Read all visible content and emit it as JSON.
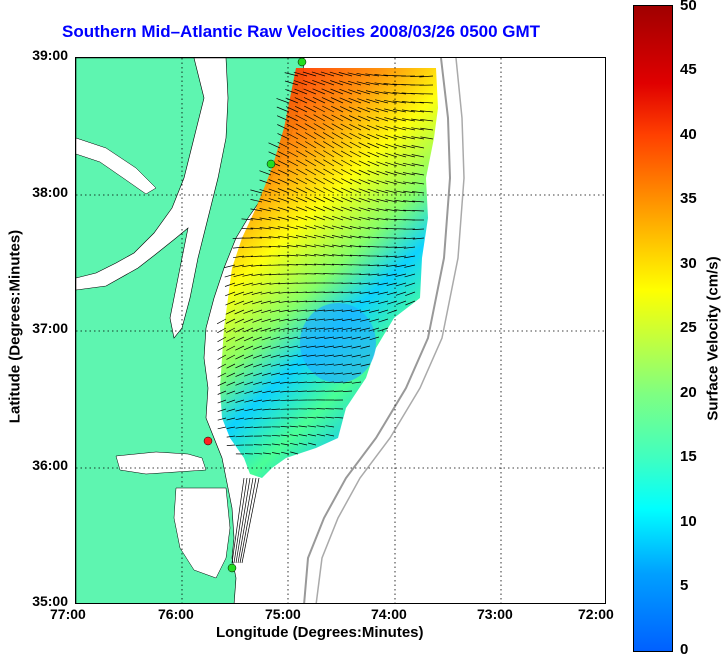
{
  "title": "Southern Mid–Atlantic Raw Velocities 2008/03/26 0500 GMT",
  "axes": {
    "xlabel": "Longitude (Degrees:Minutes)",
    "ylabel": "Latitude (Degrees:Minutes)",
    "x_ticks": [
      "77:00",
      "76:00",
      "75:00",
      "74:00",
      "73:00",
      "72:00"
    ],
    "y_ticks": [
      "39:00",
      "38:00",
      "37:00",
      "36:00",
      "35:00"
    ]
  },
  "colorbar": {
    "label": "Surface Velocity (cm/s)",
    "ticks": [
      "50",
      "45",
      "40",
      "35",
      "30",
      "25",
      "20",
      "15",
      "10",
      "5",
      "0"
    ],
    "range": [
      0,
      50
    ]
  },
  "colors": {
    "land": "#5ef5b0",
    "title": "#0000ff",
    "station": "#22dd22",
    "station_alt": "#ff2020"
  }
}
